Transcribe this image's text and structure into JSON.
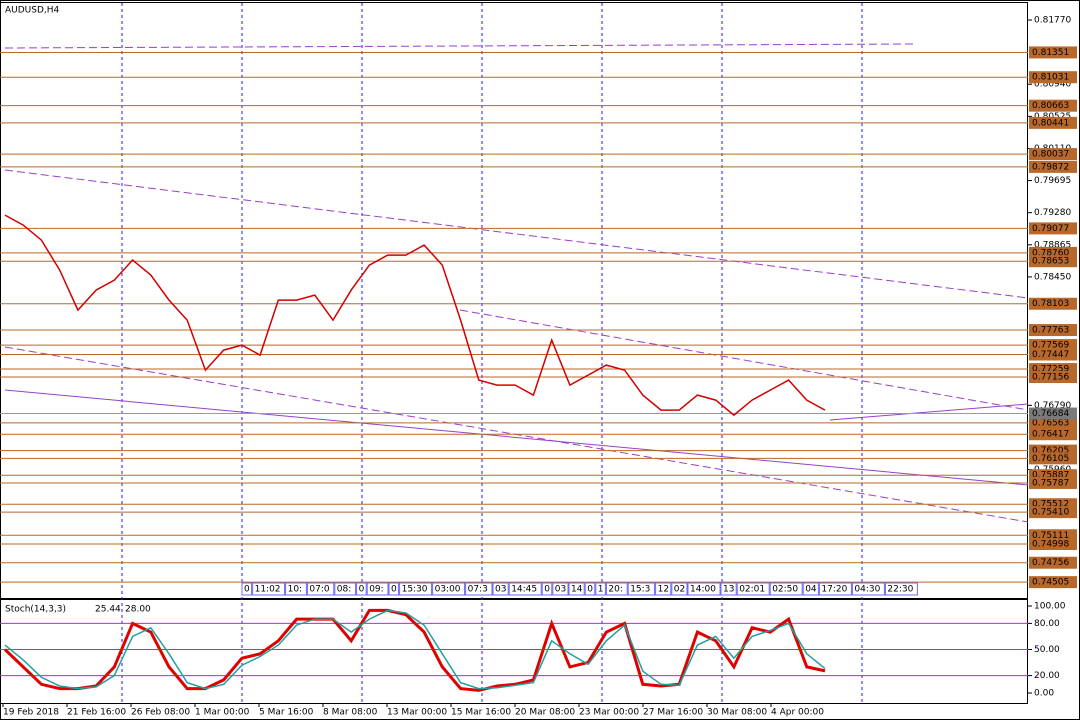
{
  "chart_data": [
    {
      "type": "line",
      "title": "AUDUSD,H4",
      "x_labels": [
        "19 Feb 2018",
        "21 Feb 16:00",
        "26 Feb 08:00",
        "1 Mar 00:00",
        "5 Mar 16:00",
        "8 Mar 08:00",
        "13 Mar 00:00",
        "15 Mar 16:00",
        "20 Mar 08:00",
        "23 Mar 00:00",
        "27 Mar 16:00",
        "30 Mar 08:00",
        "4 Apr 00:00"
      ],
      "series": [
        {
          "name": "Close",
          "color": "#d40000",
          "values": [
            0.79249,
            0.7912,
            0.78926,
            0.78538,
            0.78021,
            0.7828,
            0.78409,
            0.78668,
            0.78474,
            0.7815,
            0.77892,
            0.77246,
            0.77504,
            0.77569,
            0.77439,
            0.7815,
            0.7815,
            0.78215,
            0.77892,
            0.7828,
            0.78603,
            0.78732,
            0.78732,
            0.78861,
            0.78603,
            0.77892,
            0.77116,
            0.77052,
            0.77052,
            0.76922,
            0.77633,
            0.77052,
            0.77181,
            0.7731,
            0.77246,
            0.76922,
            0.76728,
            0.76728,
            0.76922,
            0.76858,
            0.76664,
            0.76858,
            0.76987,
            0.77116,
            0.76858,
            0.76728
          ]
        }
      ],
      "ylim": [
        0.743,
        0.8199
      ],
      "yticks": [
        {
          "value": 0.8177,
          "label": "0.81770"
        },
        {
          "value": 0.8094,
          "label": "0.80940"
        },
        {
          "value": 0.80525,
          "label": "0.80525"
        },
        {
          "value": 0.8011,
          "label": "0.80110"
        },
        {
          "value": 0.79695,
          "label": "0.79695"
        },
        {
          "value": 0.7928,
          "label": "0.79280"
        },
        {
          "value": 0.78865,
          "label": "0.78865"
        },
        {
          "value": 0.7845,
          "label": "0.78450"
        },
        {
          "value": 0.7679,
          "label": "0.76790"
        },
        {
          "value": 0.7596,
          "label": "0.75960"
        }
      ],
      "levels": [
        {
          "value": 0.81351,
          "label": "0.81351"
        },
        {
          "value": 0.81031,
          "label": "0.81031"
        },
        {
          "value": 0.80663,
          "label": "0.80663"
        },
        {
          "value": 0.80441,
          "label": "0.80441"
        },
        {
          "value": 0.80037,
          "label": "0.80037"
        },
        {
          "value": 0.79872,
          "label": "0.79872"
        },
        {
          "value": 0.79077,
          "label": "0.79077"
        },
        {
          "value": 0.7876,
          "label": "0.78760"
        },
        {
          "value": 0.78653,
          "label": "0.78653"
        },
        {
          "value": 0.78103,
          "label": "0.78103"
        },
        {
          "value": 0.77763,
          "label": "0.77763"
        },
        {
          "value": 0.77569,
          "label": "0.77569"
        },
        {
          "value": 0.77447,
          "label": "0.77447"
        },
        {
          "value": 0.77259,
          "label": "0.77259"
        },
        {
          "value": 0.77156,
          "label": "0.77156"
        },
        {
          "value": 0.76563,
          "label": "0.76563"
        },
        {
          "value": 0.76417,
          "label": "0.76417"
        },
        {
          "value": 0.76205,
          "label": "0.76205"
        },
        {
          "value": 0.76105,
          "label": "0.76105"
        },
        {
          "value": 0.75887,
          "label": "0.75887"
        },
        {
          "value": 0.75787,
          "label": "0.75787"
        },
        {
          "value": 0.75512,
          "label": "0.75512"
        },
        {
          "value": 0.7541,
          "label": "0.75410"
        },
        {
          "value": 0.75111,
          "label": "0.75111"
        },
        {
          "value": 0.74998,
          "label": "0.74998"
        },
        {
          "value": 0.74756,
          "label": "0.74756"
        },
        {
          "value": 0.74505,
          "label": "0.74505"
        }
      ],
      "level_color": "#b8682a",
      "current_price": {
        "value": 0.76684,
        "label": "0.76684"
      },
      "time_boxes": [
        "0",
        "11:02",
        "10:",
        "07:0",
        "08:",
        "0",
        "09:",
        "0",
        "15:30",
        "03:00",
        "07:3",
        "03",
        "14:45",
        "0",
        "03",
        "14",
        "0",
        "1",
        "20:",
        "15:3",
        "12",
        "02",
        "14:00",
        "13",
        "02:01",
        "02:50",
        "04",
        "17:20",
        "04:30",
        "22:30"
      ]
    },
    {
      "type": "line",
      "title": "Stoch(14,3,3)",
      "header_values": [
        {
          "value": 25.44,
          "label": "25.44"
        },
        {
          "value": 28,
          "label": "28.00"
        }
      ],
      "series": [
        {
          "name": "Main",
          "color": "#e00000",
          "values": [
            50,
            30,
            10,
            5,
            5,
            8,
            30,
            80,
            70,
            30,
            5,
            5,
            15,
            40,
            45,
            60,
            85,
            85,
            85,
            60,
            95,
            95,
            90,
            70,
            30,
            5,
            3,
            8,
            10,
            15,
            80,
            30,
            35,
            70,
            80,
            10,
            8,
            10,
            70,
            60,
            30,
            75,
            70,
            85,
            30,
            25.44
          ]
        },
        {
          "name": "Signal",
          "color": "#20a0a0",
          "values": [
            55,
            38,
            18,
            8,
            5,
            7,
            20,
            65,
            75,
            45,
            12,
            5,
            10,
            32,
            42,
            55,
            78,
            85,
            85,
            70,
            85,
            95,
            92,
            78,
            45,
            12,
            5,
            6,
            9,
            12,
            60,
            45,
            33,
            60,
            78,
            25,
            10,
            9,
            55,
            65,
            40,
            65,
            72,
            80,
            45,
            28
          ]
        }
      ],
      "ylim": [
        -13.8,
        106.9
      ],
      "yticks": [
        {
          "value": 100,
          "label": "100.00"
        },
        {
          "value": 80,
          "label": "80.00"
        },
        {
          "value": 50,
          "label": "50.00"
        },
        {
          "value": 20,
          "label": "20.00"
        },
        {
          "value": 0,
          "label": "0.00"
        }
      ],
      "levels": [
        80,
        50,
        20
      ],
      "level_color": "#ff00ff"
    }
  ]
}
